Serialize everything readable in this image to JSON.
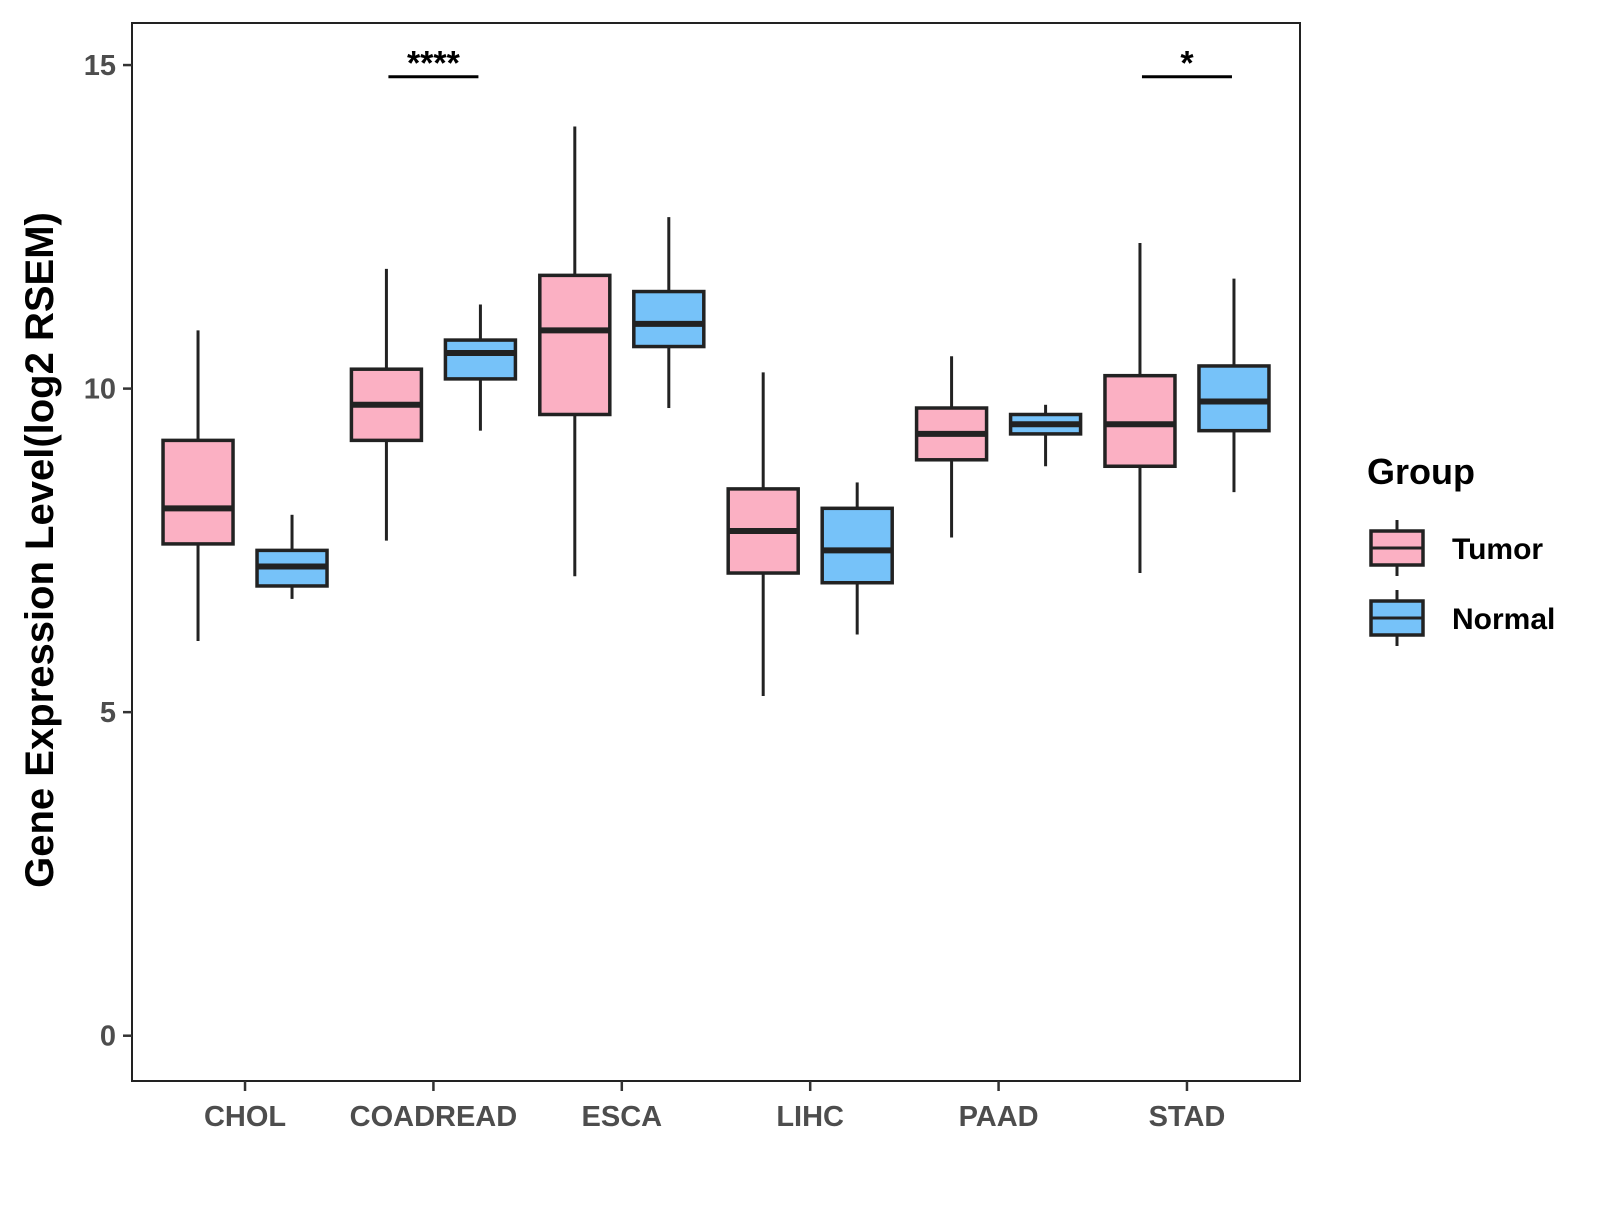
{
  "chart_data": {
    "type": "boxplot",
    "title": "",
    "xlabel": "",
    "ylabel": "Gene Expression Level(log2 RSEM)",
    "ylim": [
      -0.7,
      15.65
    ],
    "yticks": [
      0,
      5,
      10,
      15
    ],
    "ytick_labels": [
      "0",
      "5",
      "10",
      "15"
    ],
    "grid": false,
    "categories": [
      "CHOL",
      "COADREAD",
      "ESCA",
      "LIHC",
      "PAAD",
      "STAD"
    ],
    "legend": {
      "title": "Group",
      "position": "right",
      "entries": [
        "Tumor",
        "Normal"
      ]
    },
    "series": [
      {
        "name": "Tumor",
        "color": "#fbb0c3",
        "boxes": [
          {
            "min": 6.1,
            "q1": 7.6,
            "median": 8.15,
            "q3": 9.2,
            "max": 10.9
          },
          {
            "min": 7.65,
            "q1": 9.2,
            "median": 9.75,
            "q3": 10.3,
            "max": 11.85
          },
          {
            "min": 7.1,
            "q1": 9.6,
            "median": 10.9,
            "q3": 11.75,
            "max": 14.05
          },
          {
            "min": 5.25,
            "q1": 7.15,
            "median": 7.8,
            "q3": 8.45,
            "max": 10.25
          },
          {
            "min": 7.7,
            "q1": 8.9,
            "median": 9.3,
            "q3": 9.7,
            "max": 10.5
          },
          {
            "min": 7.15,
            "q1": 8.8,
            "median": 9.45,
            "q3": 10.2,
            "max": 12.25
          }
        ]
      },
      {
        "name": "Normal",
        "color": "#76c2f9",
        "boxes": [
          {
            "min": 6.75,
            "q1": 6.95,
            "median": 7.25,
            "q3": 7.5,
            "max": 8.05
          },
          {
            "min": 9.35,
            "q1": 10.15,
            "median": 10.55,
            "q3": 10.75,
            "max": 11.3
          },
          {
            "min": 9.7,
            "q1": 10.65,
            "median": 11.0,
            "q3": 11.5,
            "max": 12.65
          },
          {
            "min": 6.2,
            "q1": 7.0,
            "median": 7.5,
            "q3": 8.15,
            "max": 8.55
          },
          {
            "min": 8.8,
            "q1": 9.3,
            "median": 9.45,
            "q3": 9.6,
            "max": 9.75
          },
          {
            "min": 8.4,
            "q1": 9.35,
            "median": 9.8,
            "q3": 10.35,
            "max": 11.7
          }
        ]
      }
    ],
    "annotations": [
      {
        "category": "COADREAD",
        "label": "****",
        "y": 14.82
      },
      {
        "category": "STAD",
        "label": "*",
        "y": 14.82
      }
    ]
  }
}
